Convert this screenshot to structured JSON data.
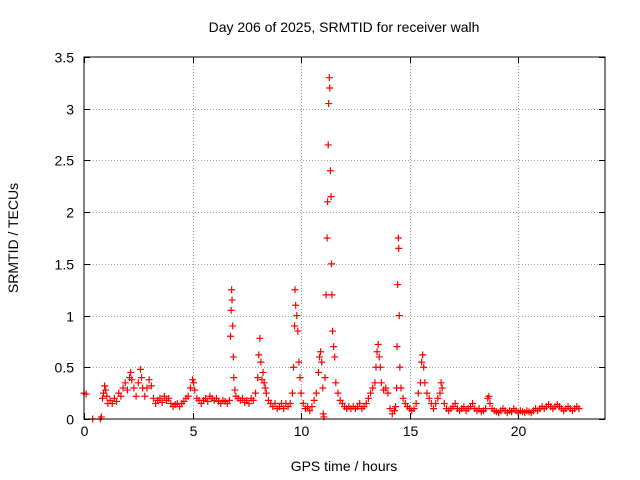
{
  "chart_data": {
    "type": "scatter",
    "title": "Day 206 of 2025, SRMTID for receiver walh",
    "xlabel": "GPS time / hours",
    "ylabel": "SRMTID / TECUs",
    "xlim": [
      0,
      24
    ],
    "ylim": [
      0,
      3.5
    ],
    "xticks": [
      0,
      5,
      10,
      15,
      20
    ],
    "xtick_labels": [
      "0",
      "5",
      "10",
      "15",
      "20"
    ],
    "yticks": [
      0,
      0.5,
      1,
      1.5,
      2,
      2.5,
      3,
      3.5
    ],
    "ytick_labels": [
      "0",
      "0.5",
      "1",
      "1.5",
      "2",
      "2.5",
      "3",
      "3.5"
    ],
    "grid": true,
    "marker": "+",
    "series": [
      {
        "name": "SRMTID",
        "color": "#ff0000",
        "points": [
          [
            0.0,
            0.25
          ],
          [
            0.1,
            0.24
          ],
          [
            0.4,
            0.0
          ],
          [
            0.75,
            0.0
          ],
          [
            0.8,
            0.02
          ],
          [
            0.85,
            0.2
          ],
          [
            0.9,
            0.25
          ],
          [
            0.95,
            0.32
          ],
          [
            1.0,
            0.28
          ],
          [
            1.05,
            0.22
          ],
          [
            1.1,
            0.15
          ],
          [
            1.2,
            0.18
          ],
          [
            1.3,
            0.15
          ],
          [
            1.4,
            0.2
          ],
          [
            1.5,
            0.17
          ],
          [
            1.6,
            0.25
          ],
          [
            1.7,
            0.22
          ],
          [
            1.8,
            0.3
          ],
          [
            1.9,
            0.35
          ],
          [
            2.0,
            0.28
          ],
          [
            2.1,
            0.4
          ],
          [
            2.15,
            0.45
          ],
          [
            2.2,
            0.38
          ],
          [
            2.3,
            0.3
          ],
          [
            2.4,
            0.22
          ],
          [
            2.5,
            0.35
          ],
          [
            2.6,
            0.48
          ],
          [
            2.65,
            0.4
          ],
          [
            2.7,
            0.3
          ],
          [
            2.8,
            0.22
          ],
          [
            2.9,
            0.3
          ],
          [
            3.0,
            0.38
          ],
          [
            3.1,
            0.32
          ],
          [
            3.2,
            0.2
          ],
          [
            3.3,
            0.15
          ],
          [
            3.4,
            0.18
          ],
          [
            3.5,
            0.2
          ],
          [
            3.6,
            0.16
          ],
          [
            3.7,
            0.22
          ],
          [
            3.8,
            0.18
          ],
          [
            3.9,
            0.2
          ],
          [
            4.0,
            0.15
          ],
          [
            4.1,
            0.12
          ],
          [
            4.2,
            0.14
          ],
          [
            4.3,
            0.15
          ],
          [
            4.4,
            0.12
          ],
          [
            4.5,
            0.15
          ],
          [
            4.6,
            0.17
          ],
          [
            4.7,
            0.2
          ],
          [
            4.8,
            0.22
          ],
          [
            4.9,
            0.3
          ],
          [
            5.0,
            0.38
          ],
          [
            5.05,
            0.35
          ],
          [
            5.1,
            0.28
          ],
          [
            5.2,
            0.2
          ],
          [
            5.3,
            0.18
          ],
          [
            5.4,
            0.15
          ],
          [
            5.5,
            0.18
          ],
          [
            5.6,
            0.2
          ],
          [
            5.7,
            0.17
          ],
          [
            5.8,
            0.22
          ],
          [
            5.9,
            0.2
          ],
          [
            6.0,
            0.18
          ],
          [
            6.1,
            0.2
          ],
          [
            6.2,
            0.17
          ],
          [
            6.3,
            0.15
          ],
          [
            6.4,
            0.18
          ],
          [
            6.5,
            0.17
          ],
          [
            6.6,
            0.15
          ],
          [
            6.7,
            0.18
          ],
          [
            6.75,
            0.8
          ],
          [
            6.78,
            1.05
          ],
          [
            6.8,
            1.25
          ],
          [
            6.82,
            1.15
          ],
          [
            6.85,
            0.9
          ],
          [
            6.88,
            0.6
          ],
          [
            6.9,
            0.4
          ],
          [
            6.95,
            0.28
          ],
          [
            7.0,
            0.22
          ],
          [
            7.1,
            0.2
          ],
          [
            7.2,
            0.18
          ],
          [
            7.3,
            0.2
          ],
          [
            7.4,
            0.16
          ],
          [
            7.5,
            0.18
          ],
          [
            7.6,
            0.15
          ],
          [
            7.7,
            0.2
          ],
          [
            7.8,
            0.18
          ],
          [
            7.9,
            0.25
          ],
          [
            8.0,
            0.4
          ],
          [
            8.05,
            0.62
          ],
          [
            8.1,
            0.78
          ],
          [
            8.15,
            0.55
          ],
          [
            8.2,
            0.38
          ],
          [
            8.25,
            0.45
          ],
          [
            8.3,
            0.35
          ],
          [
            8.35,
            0.3
          ],
          [
            8.4,
            0.25
          ],
          [
            8.5,
            0.18
          ],
          [
            8.6,
            0.15
          ],
          [
            8.7,
            0.12
          ],
          [
            8.8,
            0.15
          ],
          [
            8.9,
            0.1
          ],
          [
            9.0,
            0.12
          ],
          [
            9.1,
            0.15
          ],
          [
            9.2,
            0.1
          ],
          [
            9.3,
            0.15
          ],
          [
            9.4,
            0.12
          ],
          [
            9.5,
            0.15
          ],
          [
            9.6,
            0.25
          ],
          [
            9.65,
            0.5
          ],
          [
            9.7,
            0.9
          ],
          [
            9.72,
            1.25
          ],
          [
            9.75,
            1.1
          ],
          [
            9.8,
            1.0
          ],
          [
            9.85,
            0.85
          ],
          [
            9.9,
            0.55
          ],
          [
            9.95,
            0.4
          ],
          [
            10.0,
            0.25
          ],
          [
            10.1,
            0.15
          ],
          [
            10.2,
            0.1
          ],
          [
            10.3,
            0.12
          ],
          [
            10.4,
            0.08
          ],
          [
            10.5,
            0.12
          ],
          [
            10.6,
            0.18
          ],
          [
            10.7,
            0.25
          ],
          [
            10.8,
            0.45
          ],
          [
            10.85,
            0.6
          ],
          [
            10.9,
            0.65
          ],
          [
            10.95,
            0.55
          ],
          [
            11.0,
            0.3
          ],
          [
            11.02,
            0.05
          ],
          [
            11.05,
            0.02
          ],
          [
            11.1,
            0.4
          ],
          [
            11.15,
            1.2
          ],
          [
            11.2,
            1.75
          ],
          [
            11.22,
            2.1
          ],
          [
            11.25,
            2.65
          ],
          [
            11.27,
            3.05
          ],
          [
            11.3,
            3.3
          ],
          [
            11.32,
            3.2
          ],
          [
            11.35,
            2.4
          ],
          [
            11.38,
            2.15
          ],
          [
            11.4,
            1.5
          ],
          [
            11.42,
            1.2
          ],
          [
            11.45,
            0.85
          ],
          [
            11.5,
            0.7
          ],
          [
            11.55,
            0.6
          ],
          [
            11.6,
            0.35
          ],
          [
            11.7,
            0.25
          ],
          [
            11.8,
            0.18
          ],
          [
            11.9,
            0.15
          ],
          [
            12.0,
            0.12
          ],
          [
            12.1,
            0.1
          ],
          [
            12.2,
            0.12
          ],
          [
            12.3,
            0.1
          ],
          [
            12.4,
            0.12
          ],
          [
            12.5,
            0.1
          ],
          [
            12.6,
            0.12
          ],
          [
            12.7,
            0.15
          ],
          [
            12.8,
            0.1
          ],
          [
            12.9,
            0.12
          ],
          [
            13.0,
            0.15
          ],
          [
            13.1,
            0.2
          ],
          [
            13.2,
            0.25
          ],
          [
            13.3,
            0.3
          ],
          [
            13.4,
            0.35
          ],
          [
            13.45,
            0.5
          ],
          [
            13.5,
            0.65
          ],
          [
            13.55,
            0.72
          ],
          [
            13.6,
            0.6
          ],
          [
            13.65,
            0.5
          ],
          [
            13.7,
            0.35
          ],
          [
            13.8,
            0.28
          ],
          [
            13.9,
            0.3
          ],
          [
            14.0,
            0.25
          ],
          [
            14.1,
            0.1
          ],
          [
            14.2,
            0.05
          ],
          [
            14.3,
            0.08
          ],
          [
            14.35,
            0.12
          ],
          [
            14.4,
            0.3
          ],
          [
            14.42,
            0.7
          ],
          [
            14.45,
            1.3
          ],
          [
            14.48,
            1.75
          ],
          [
            14.5,
            1.65
          ],
          [
            14.52,
            1.0
          ],
          [
            14.55,
            0.5
          ],
          [
            14.6,
            0.3
          ],
          [
            14.7,
            0.2
          ],
          [
            14.8,
            0.15
          ],
          [
            14.9,
            0.12
          ],
          [
            15.0,
            0.1
          ],
          [
            15.1,
            0.08
          ],
          [
            15.2,
            0.1
          ],
          [
            15.3,
            0.15
          ],
          [
            15.4,
            0.25
          ],
          [
            15.5,
            0.35
          ],
          [
            15.55,
            0.55
          ],
          [
            15.6,
            0.62
          ],
          [
            15.65,
            0.5
          ],
          [
            15.7,
            0.35
          ],
          [
            15.8,
            0.25
          ],
          [
            15.9,
            0.2
          ],
          [
            16.0,
            0.15
          ],
          [
            16.1,
            0.1
          ],
          [
            16.2,
            0.15
          ],
          [
            16.3,
            0.2
          ],
          [
            16.4,
            0.25
          ],
          [
            16.45,
            0.35
          ],
          [
            16.5,
            0.3
          ],
          [
            16.6,
            0.15
          ],
          [
            16.7,
            0.1
          ],
          [
            16.8,
            0.08
          ],
          [
            16.9,
            0.1
          ],
          [
            17.0,
            0.12
          ],
          [
            17.1,
            0.15
          ],
          [
            17.2,
            0.1
          ],
          [
            17.3,
            0.08
          ],
          [
            17.4,
            0.1
          ],
          [
            17.5,
            0.12
          ],
          [
            17.6,
            0.08
          ],
          [
            17.7,
            0.1
          ],
          [
            17.8,
            0.12
          ],
          [
            17.9,
            0.15
          ],
          [
            18.0,
            0.1
          ],
          [
            18.1,
            0.08
          ],
          [
            18.2,
            0.1
          ],
          [
            18.3,
            0.07
          ],
          [
            18.4,
            0.08
          ],
          [
            18.5,
            0.1
          ],
          [
            18.6,
            0.2
          ],
          [
            18.65,
            0.22
          ],
          [
            18.7,
            0.15
          ],
          [
            18.8,
            0.1
          ],
          [
            18.9,
            0.08
          ],
          [
            19.0,
            0.07
          ],
          [
            19.1,
            0.06
          ],
          [
            19.2,
            0.08
          ],
          [
            19.3,
            0.1
          ],
          [
            19.4,
            0.08
          ],
          [
            19.5,
            0.06
          ],
          [
            19.6,
            0.08
          ],
          [
            19.7,
            0.07
          ],
          [
            19.8,
            0.1
          ],
          [
            19.9,
            0.08
          ],
          [
            20.0,
            0.06
          ],
          [
            20.1,
            0.08
          ],
          [
            20.2,
            0.07
          ],
          [
            20.3,
            0.06
          ],
          [
            20.4,
            0.08
          ],
          [
            20.5,
            0.07
          ],
          [
            20.6,
            0.06
          ],
          [
            20.7,
            0.08
          ],
          [
            20.8,
            0.1
          ],
          [
            20.9,
            0.08
          ],
          [
            21.0,
            0.1
          ],
          [
            21.1,
            0.12
          ],
          [
            21.2,
            0.1
          ],
          [
            21.3,
            0.12
          ],
          [
            21.4,
            0.14
          ],
          [
            21.5,
            0.12
          ],
          [
            21.6,
            0.1
          ],
          [
            21.7,
            0.12
          ],
          [
            21.8,
            0.14
          ],
          [
            21.9,
            0.12
          ],
          [
            22.0,
            0.1
          ],
          [
            22.1,
            0.08
          ],
          [
            22.2,
            0.1
          ],
          [
            22.3,
            0.12
          ],
          [
            22.4,
            0.1
          ],
          [
            22.5,
            0.08
          ],
          [
            22.6,
            0.1
          ],
          [
            22.7,
            0.12
          ],
          [
            22.8,
            0.1
          ]
        ]
      }
    ]
  }
}
